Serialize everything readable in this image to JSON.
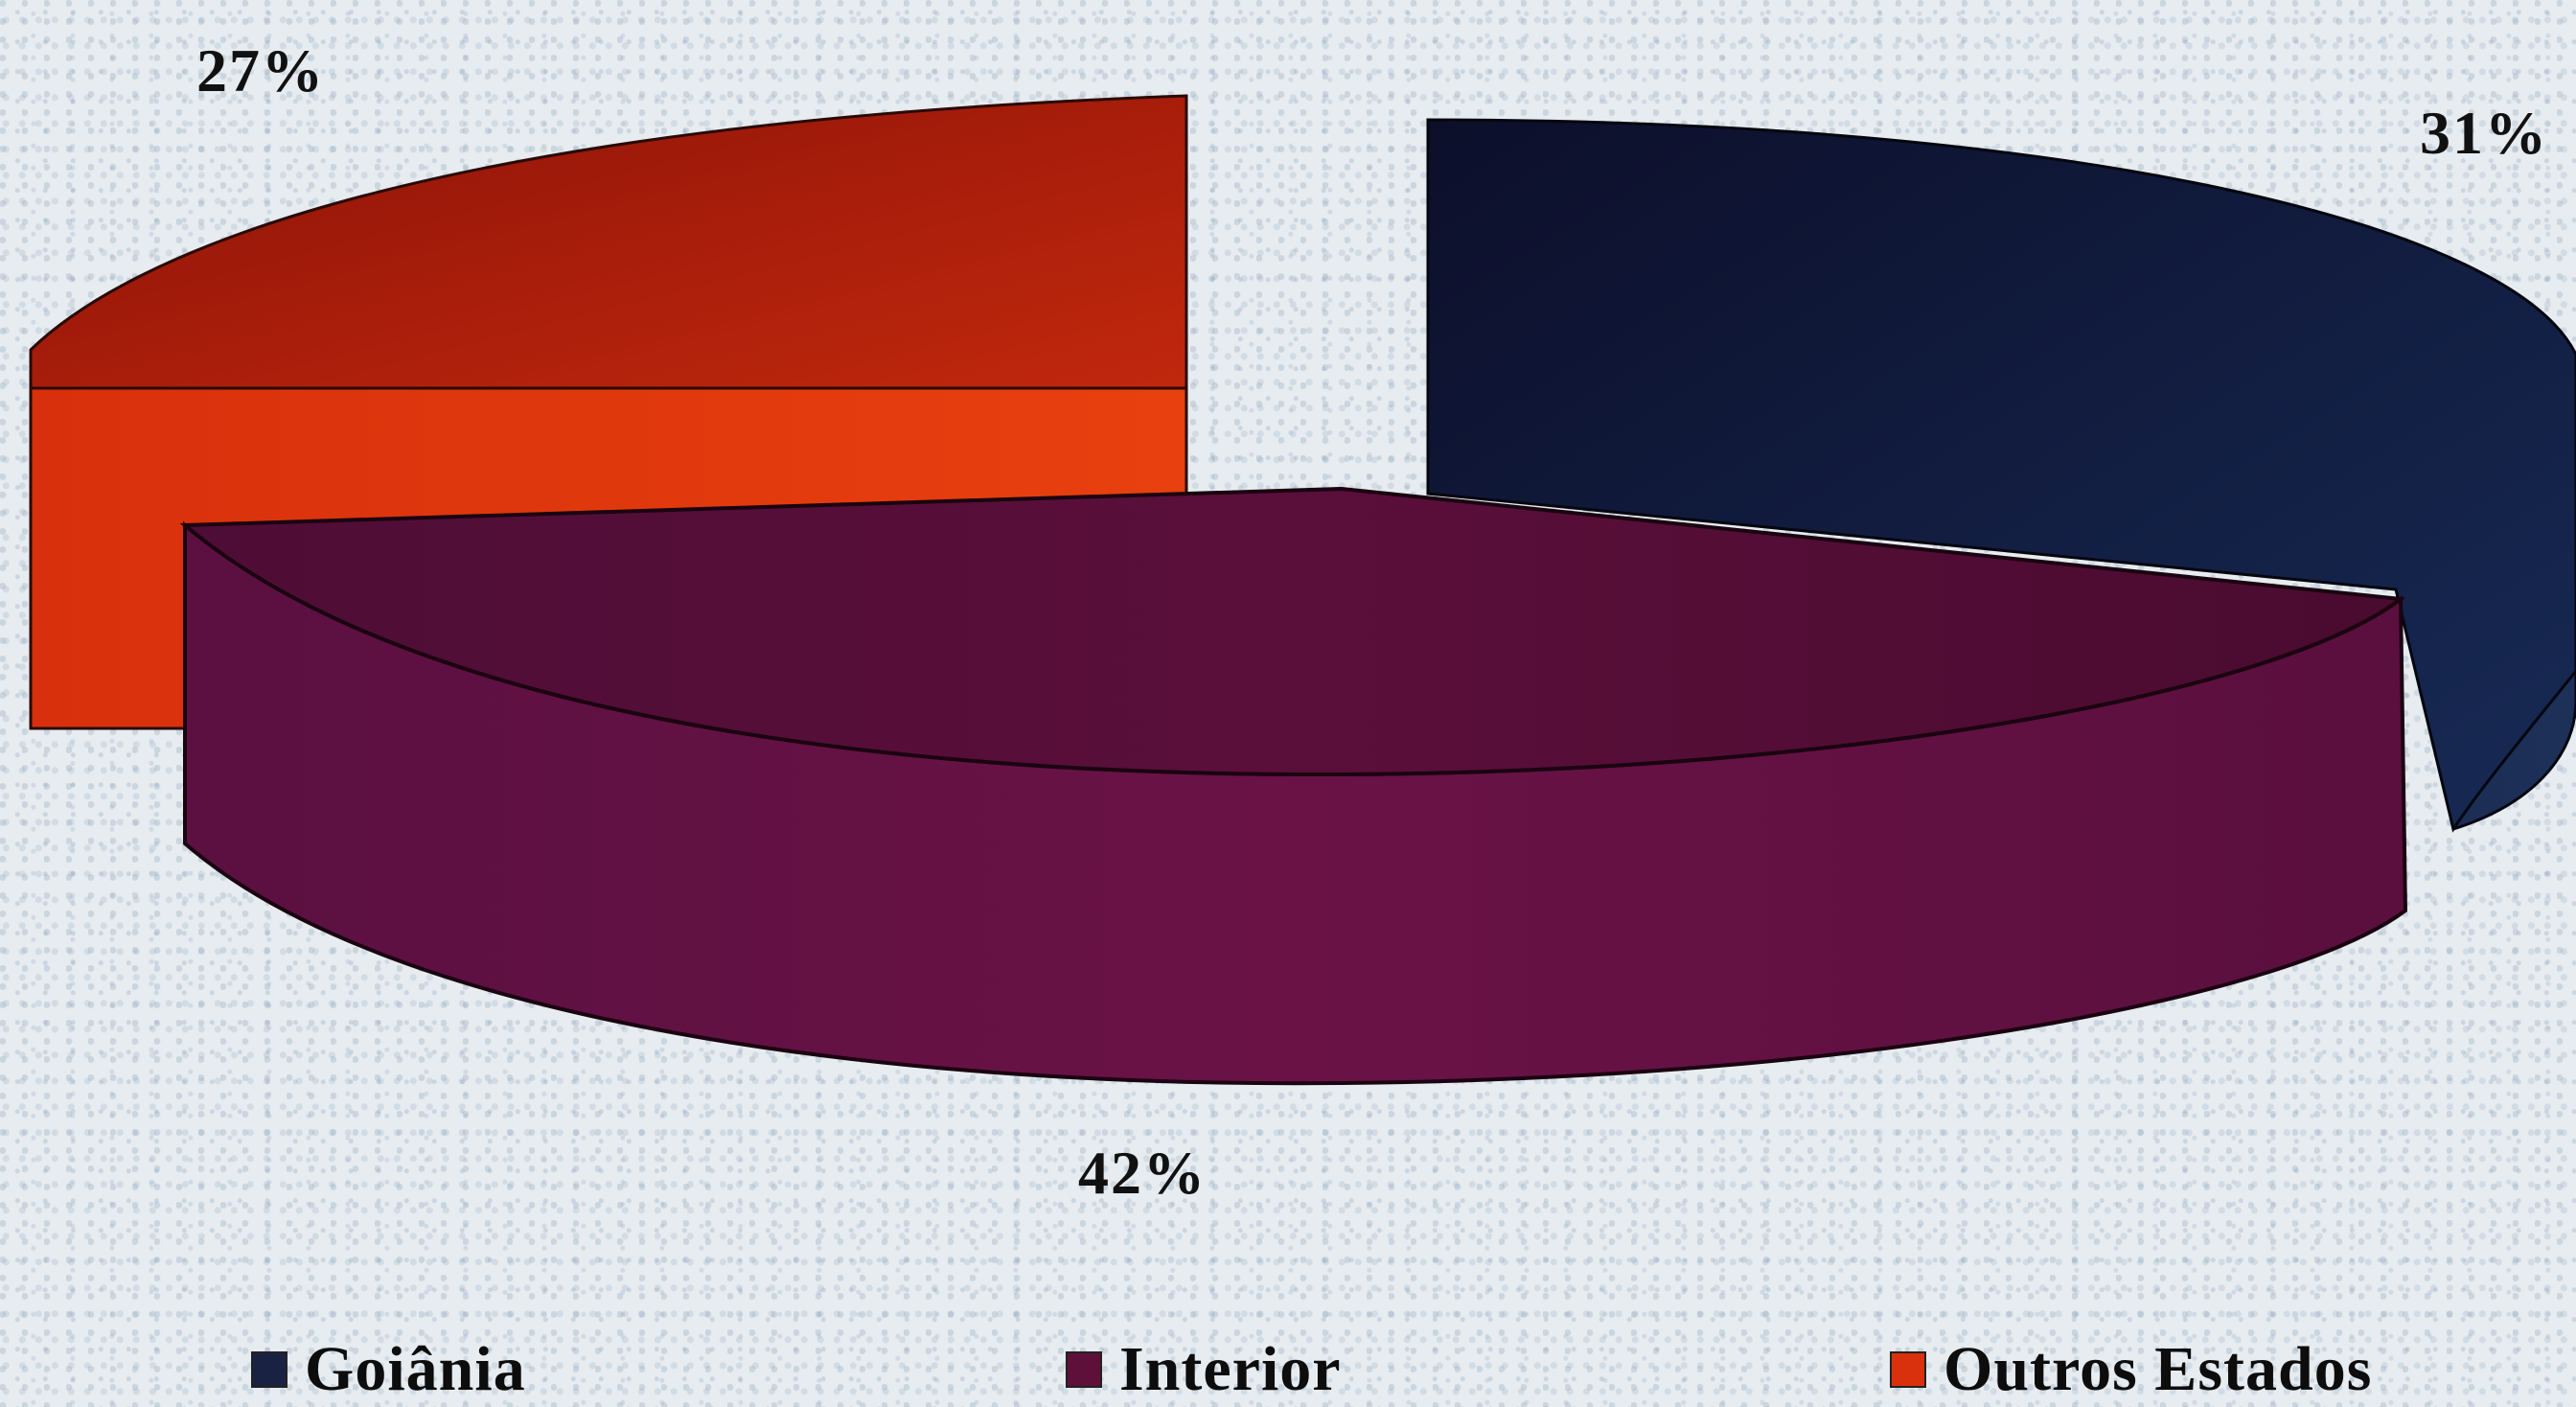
{
  "chart_data": {
    "type": "pie",
    "title": "",
    "slices": [
      {
        "label": "Goiânia",
        "value": 31,
        "display": "31%",
        "color": "#14193f"
      },
      {
        "label": "Interior",
        "value": 42,
        "display": "42%",
        "color": "#5e0f3a"
      },
      {
        "label": "Outros Estados",
        "value": 27,
        "display": "27%",
        "color": "#d9300e"
      }
    ],
    "legend_position": "bottom",
    "style": "3d-exploded"
  }
}
